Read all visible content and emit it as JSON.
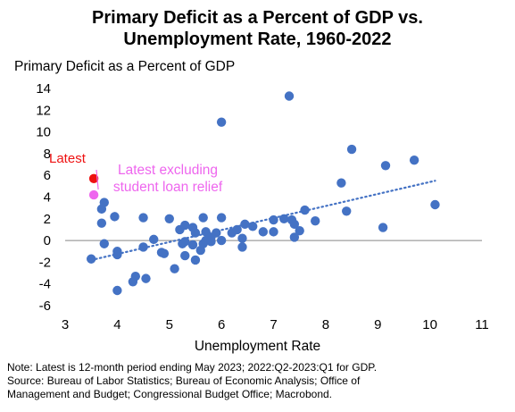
{
  "chart_data": {
    "type": "scatter",
    "title_lines": [
      "Primary Deficit as a Percent of GDP vs.",
      "Unemployment Rate, 1960-2022"
    ],
    "xlabel": "Unemployment Rate",
    "ylabel": "Primary Deficit as a Percent of GDP",
    "xlim": [
      3,
      11
    ],
    "ylim": [
      -6,
      14
    ],
    "xticks": [
      3,
      4,
      5,
      6,
      7,
      8,
      9,
      10,
      11
    ],
    "yticks": [
      -6,
      -4,
      -2,
      0,
      2,
      4,
      6,
      8,
      10,
      12,
      14
    ],
    "grid": false,
    "point_color": "#4472C4",
    "trend_color": "#4472C4",
    "trendline": {
      "style": "dotted",
      "x": [
        3.5,
        10.1
      ],
      "y": [
        -1.8,
        5.5
      ]
    },
    "series": [
      {
        "points": [
          [
            3.5,
            -1.7
          ],
          [
            3.7,
            2.9
          ],
          [
            3.75,
            3.5
          ],
          [
            3.7,
            1.6
          ],
          [
            3.75,
            -0.3
          ],
          [
            3.95,
            2.2
          ],
          [
            4.0,
            -1.0
          ],
          [
            4.0,
            -1.3
          ],
          [
            4.0,
            -4.6
          ],
          [
            4.3,
            -3.8
          ],
          [
            4.35,
            -3.3
          ],
          [
            4.5,
            2.1
          ],
          [
            4.5,
            -0.6
          ],
          [
            4.55,
            -3.5
          ],
          [
            4.7,
            0.1
          ],
          [
            4.85,
            -1.1
          ],
          [
            4.9,
            -1.2
          ],
          [
            5.0,
            2.0
          ],
          [
            5.1,
            -2.6
          ],
          [
            5.2,
            1.0
          ],
          [
            5.25,
            -0.3
          ],
          [
            5.3,
            1.4
          ],
          [
            5.3,
            -0.1
          ],
          [
            5.3,
            -1.4
          ],
          [
            5.45,
            1.2
          ],
          [
            5.45,
            -0.4
          ],
          [
            5.5,
            -1.8
          ],
          [
            5.5,
            0.7
          ],
          [
            5.6,
            -0.9
          ],
          [
            5.65,
            -0.3
          ],
          [
            5.65,
            2.1
          ],
          [
            5.7,
            0.8
          ],
          [
            5.7,
            0.0
          ],
          [
            5.8,
            0.3
          ],
          [
            5.8,
            -0.1
          ],
          [
            5.9,
            0.7
          ],
          [
            6.0,
            0.0
          ],
          [
            6.0,
            2.1
          ],
          [
            6.0,
            10.9
          ],
          [
            6.2,
            0.7
          ],
          [
            6.3,
            1.0
          ],
          [
            6.4,
            -0.6
          ],
          [
            6.45,
            1.5
          ],
          [
            6.4,
            0.2
          ],
          [
            6.6,
            1.3
          ],
          [
            6.8,
            0.8
          ],
          [
            7.0,
            1.9
          ],
          [
            7.0,
            0.8
          ],
          [
            7.2,
            2.0
          ],
          [
            7.3,
            13.3
          ],
          [
            7.35,
            1.9
          ],
          [
            7.4,
            1.5
          ],
          [
            7.4,
            0.3
          ],
          [
            7.5,
            0.9
          ],
          [
            7.6,
            2.8
          ],
          [
            7.8,
            1.8
          ],
          [
            8.3,
            5.3
          ],
          [
            8.4,
            2.7
          ],
          [
            8.5,
            8.4
          ],
          [
            9.1,
            1.2
          ],
          [
            9.15,
            6.9
          ],
          [
            9.7,
            7.4
          ],
          [
            10.1,
            3.3
          ]
        ]
      }
    ],
    "highlights": [
      {
        "label": "Latest",
        "x": 3.55,
        "y": 5.7,
        "color": "#EE1111"
      },
      {
        "label_lines": [
          "Latest excluding",
          "student loan relief"
        ],
        "x": 3.55,
        "y": 4.2,
        "color": "#EE66EE"
      }
    ]
  },
  "note_lines": [
    "Note: Latest is 12-month period ending May 2023; 2022:Q2-2023:Q1 for GDP.",
    "Source: Bureau of Labor Statistics; Bureau of Economic Analysis; Office of",
    "Management and Budget; Congressional Budget Office; Macrobond."
  ]
}
